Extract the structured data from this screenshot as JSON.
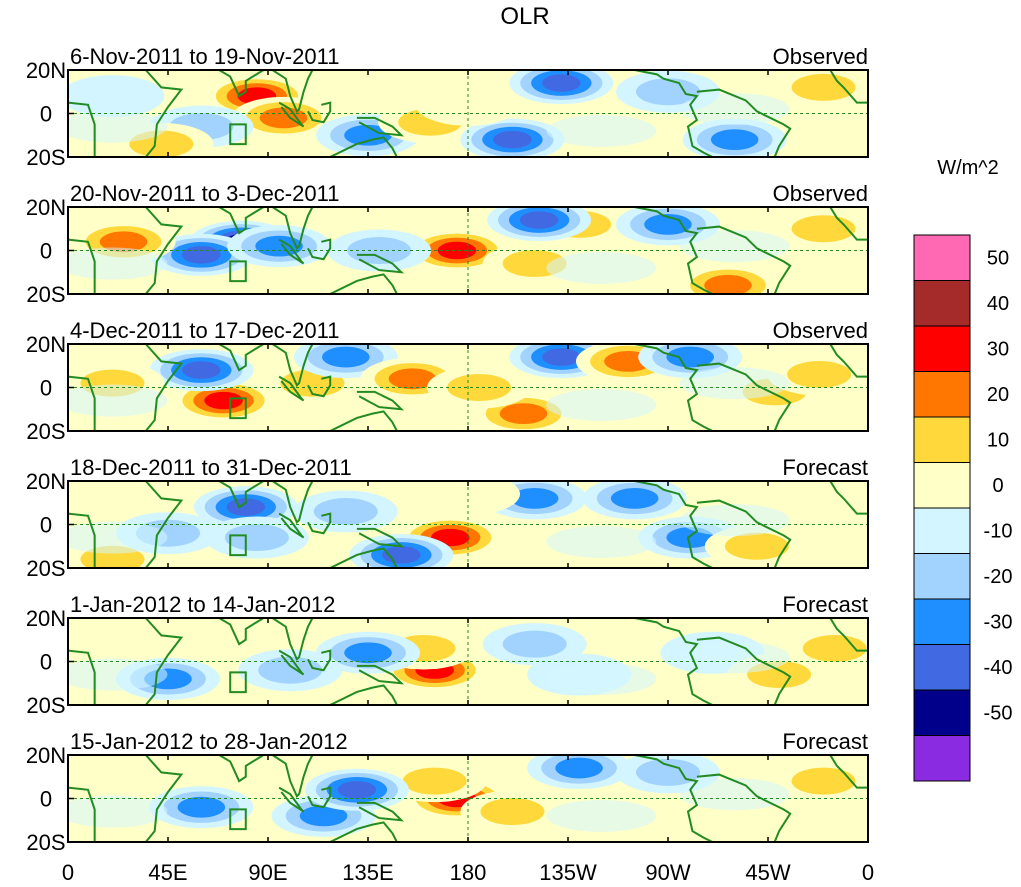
{
  "chart_data": {
    "type": "heatmap",
    "title": "OLR",
    "units": "W/m^2",
    "x_ticks": [
      "0",
      "45E",
      "90E",
      "135E",
      "180",
      "135W",
      "90W",
      "45W",
      "0"
    ],
    "y_ticks": [
      "20N",
      "0",
      "20S"
    ],
    "x_range_deg_east": [
      0,
      360
    ],
    "y_range_deg": [
      -20,
      20
    ],
    "colorbar": {
      "labels": [
        "50",
        "40",
        "30",
        "20",
        "10",
        "0",
        "-10",
        "-20",
        "-30",
        "-40",
        "-50"
      ],
      "levels": [
        50,
        40,
        30,
        20,
        10,
        0,
        -10,
        -20,
        -30,
        -40,
        -50
      ],
      "colors": [
        "#ff69b4",
        "#a52a2a",
        "#ff0000",
        "#ff7700",
        "#ffd93b",
        "#ffffc8",
        "#d3f5ff",
        "#a2d3ff",
        "#1f8fff",
        "#4169e1",
        "#00008b",
        "#8a2be2"
      ]
    },
    "panels": [
      {
        "date_range": "6-Nov-2011 to 19-Nov-2011",
        "status": "Observed",
        "anomalies": [
          {
            "lon": 85,
            "lat": 8,
            "value": 40
          },
          {
            "lon": 97,
            "lat": -2,
            "value": 30
          },
          {
            "lon": 135,
            "lat": -10,
            "value": -30
          },
          {
            "lon": 163,
            "lat": -4,
            "value": 20
          },
          {
            "lon": 200,
            "lat": -12,
            "value": -40
          },
          {
            "lon": 222,
            "lat": 14,
            "value": -40
          },
          {
            "lon": 60,
            "lat": -6,
            "value": -20
          },
          {
            "lon": 42,
            "lat": -14,
            "value": 20
          },
          {
            "lon": 300,
            "lat": -12,
            "value": -30
          },
          {
            "lon": 340,
            "lat": 12,
            "value": 20
          },
          {
            "lon": 270,
            "lat": 10,
            "value": -20
          },
          {
            "lon": 180,
            "lat": 4,
            "value": 10
          },
          {
            "lon": 20,
            "lat": 8,
            "value": -10
          }
        ]
      },
      {
        "date_range": "20-Nov-2011 to 3-Dec-2011",
        "status": "Observed",
        "anomalies": [
          {
            "lon": 78,
            "lat": 4,
            "value": -50
          },
          {
            "lon": 60,
            "lat": -2,
            "value": -40
          },
          {
            "lon": 95,
            "lat": 2,
            "value": -30
          },
          {
            "lon": 175,
            "lat": 0,
            "value": 40
          },
          {
            "lon": 210,
            "lat": -6,
            "value": 20
          },
          {
            "lon": 230,
            "lat": 12,
            "value": 20
          },
          {
            "lon": 212,
            "lat": 14,
            "value": -40
          },
          {
            "lon": 270,
            "lat": 12,
            "value": -30
          },
          {
            "lon": 297,
            "lat": -16,
            "value": 30
          },
          {
            "lon": 25,
            "lat": 4,
            "value": 30
          },
          {
            "lon": 140,
            "lat": 0,
            "value": -20
          },
          {
            "lon": 340,
            "lat": 10,
            "value": 20
          }
        ]
      },
      {
        "date_range": "4-Dec-2011 to 17-Dec-2011",
        "status": "Observed",
        "anomalies": [
          {
            "lon": 70,
            "lat": -6,
            "value": 40
          },
          {
            "lon": 60,
            "lat": 8,
            "value": -40
          },
          {
            "lon": 110,
            "lat": 2,
            "value": 20
          },
          {
            "lon": 125,
            "lat": 14,
            "value": -30
          },
          {
            "lon": 155,
            "lat": 4,
            "value": 30
          },
          {
            "lon": 205,
            "lat": -12,
            "value": 30
          },
          {
            "lon": 185,
            "lat": 0,
            "value": 20
          },
          {
            "lon": 222,
            "lat": 14,
            "value": -40
          },
          {
            "lon": 252,
            "lat": 12,
            "value": 30
          },
          {
            "lon": 280,
            "lat": 14,
            "value": -30
          },
          {
            "lon": 318,
            "lat": -2,
            "value": 20
          },
          {
            "lon": 20,
            "lat": 2,
            "value": 20
          },
          {
            "lon": 338,
            "lat": 6,
            "value": 20
          }
        ]
      },
      {
        "date_range": "18-Dec-2011 to 31-Dec-2011",
        "status": "Forecast",
        "anomalies": [
          {
            "lon": 172,
            "lat": -6,
            "value": 40
          },
          {
            "lon": 150,
            "lat": -14,
            "value": -40
          },
          {
            "lon": 80,
            "lat": 8,
            "value": -40
          },
          {
            "lon": 85,
            "lat": -6,
            "value": -20
          },
          {
            "lon": 125,
            "lat": 6,
            "value": -20
          },
          {
            "lon": 210,
            "lat": 12,
            "value": -30
          },
          {
            "lon": 255,
            "lat": 12,
            "value": -30
          },
          {
            "lon": 280,
            "lat": -6,
            "value": -30
          },
          {
            "lon": 310,
            "lat": -10,
            "value": 20
          },
          {
            "lon": 20,
            "lat": -16,
            "value": 20
          },
          {
            "lon": 45,
            "lat": -4,
            "value": -20
          },
          {
            "lon": 180,
            "lat": 14,
            "value": 10
          }
        ]
      },
      {
        "date_range": "1-Jan-2012 to 14-Jan-2012",
        "status": "Forecast",
        "anomalies": [
          {
            "lon": 165,
            "lat": -4,
            "value": 40
          },
          {
            "lon": 160,
            "lat": 6,
            "value": 20
          },
          {
            "lon": 45,
            "lat": -8,
            "value": -30
          },
          {
            "lon": 100,
            "lat": -4,
            "value": -20
          },
          {
            "lon": 135,
            "lat": 4,
            "value": -30
          },
          {
            "lon": 210,
            "lat": 8,
            "value": -20
          },
          {
            "lon": 230,
            "lat": -6,
            "value": -10
          },
          {
            "lon": 290,
            "lat": 4,
            "value": -10
          },
          {
            "lon": 320,
            "lat": -6,
            "value": 20
          },
          {
            "lon": 345,
            "lat": 6,
            "value": 20
          }
        ]
      },
      {
        "date_range": "15-Jan-2012 to 28-Jan-2012",
        "status": "Forecast",
        "anomalies": [
          {
            "lon": 175,
            "lat": 0,
            "value": 40
          },
          {
            "lon": 165,
            "lat": 8,
            "value": 20
          },
          {
            "lon": 200,
            "lat": -6,
            "value": 20
          },
          {
            "lon": 60,
            "lat": -4,
            "value": -30
          },
          {
            "lon": 115,
            "lat": -8,
            "value": -30
          },
          {
            "lon": 130,
            "lat": 4,
            "value": -40
          },
          {
            "lon": 230,
            "lat": 14,
            "value": -30
          },
          {
            "lon": 270,
            "lat": 12,
            "value": -20
          },
          {
            "lon": 300,
            "lat": -6,
            "value": 10
          },
          {
            "lon": 340,
            "lat": 8,
            "value": 20
          }
        ]
      }
    ]
  }
}
